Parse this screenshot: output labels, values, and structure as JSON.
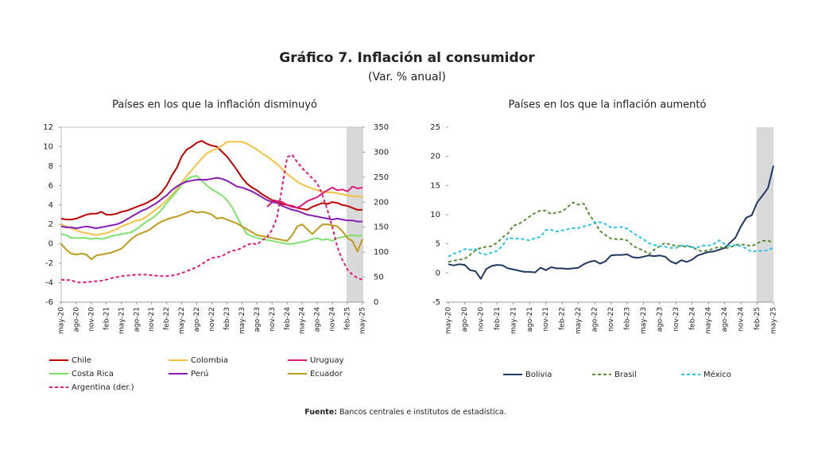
{
  "title": "Gráfico 7. Inflación al consumidor",
  "subtitle": "(Var. % anual)",
  "source_label": "Fuente:",
  "source_text": "Bancos centrales e institutos de estadística.",
  "chart_data": [
    {
      "type": "line",
      "title": "Países en los que la inflación disminuyó",
      "categories": [
        "may-20",
        null,
        null,
        "ago-20",
        null,
        null,
        "nov-20",
        null,
        null,
        "feb-21",
        null,
        null,
        "may-21",
        null,
        null,
        "ago-21",
        null,
        null,
        "nov-21",
        null,
        null,
        "feb-22",
        null,
        null,
        "may-22",
        null,
        null,
        "ago-22",
        null,
        null,
        "nov-22",
        null,
        null,
        "feb-23",
        null,
        null,
        "may-23",
        null,
        null,
        "ago-23",
        null,
        null,
        "nov-23",
        null,
        null,
        "feb-24",
        null,
        null,
        "may-24",
        null,
        null,
        "ago-24",
        null,
        null,
        "nov-24",
        null,
        null,
        "feb-25",
        null,
        null,
        "may-25"
      ],
      "ylim": [
        -6,
        12
      ],
      "yticks": [
        -6,
        -4,
        -2,
        0,
        2,
        4,
        6,
        8,
        10,
        12
      ],
      "y2lim": [
        0,
        350
      ],
      "y2ticks": [
        0,
        50,
        100,
        150,
        200,
        250,
        300,
        350
      ],
      "series": [
        {
          "name": "Chile",
          "color": "#c00000",
          "values": [
            2.6,
            2.5,
            2.5,
            2.6,
            2.8,
            3.0,
            3.1,
            3.1,
            3.3,
            3.0,
            3.0,
            3.1,
            3.3,
            3.4,
            3.6,
            3.8,
            4.0,
            4.2,
            4.5,
            4.8,
            5.3,
            6.0,
            7.0,
            7.8,
            9.0,
            9.7,
            10.0,
            10.4,
            10.6,
            10.3,
            10.1,
            10.0,
            9.5,
            9.0,
            8.3,
            7.6,
            6.8,
            6.2,
            5.8,
            5.5,
            5.1,
            4.8,
            4.5,
            4.4,
            4.1,
            4.0,
            3.9,
            3.7,
            3.6,
            3.5,
            3.8,
            4.0,
            4.2,
            4.1,
            4.3,
            4.2,
            4.0,
            3.9,
            3.7,
            3.5,
            3.5
          ]
        },
        {
          "name": "Colombia",
          "color": "#f5c242",
          "values": [
            2.0,
            1.8,
            1.6,
            1.4,
            1.2,
            1.1,
            1.0,
            0.9,
            1.0,
            1.1,
            1.3,
            1.5,
            1.8,
            2.0,
            2.2,
            2.4,
            2.5,
            2.8,
            3.2,
            3.6,
            4.0,
            4.5,
            5.0,
            5.6,
            6.3,
            7.0,
            7.6,
            8.2,
            8.8,
            9.3,
            9.6,
            9.8,
            10.1,
            10.5,
            10.5,
            10.5,
            10.5,
            10.3,
            10.0,
            9.7,
            9.3,
            9.0,
            8.6,
            8.2,
            7.7,
            7.2,
            6.8,
            6.4,
            6.1,
            5.9,
            5.7,
            5.5,
            5.4,
            5.3,
            5.3,
            5.2,
            5.1,
            5.0,
            4.9,
            4.9,
            4.8
          ]
        },
        {
          "name": "Uruguay",
          "color": "#e0197d",
          "values": [
            null,
            null,
            null,
            null,
            null,
            null,
            null,
            null,
            null,
            null,
            null,
            null,
            null,
            null,
            null,
            null,
            null,
            null,
            null,
            null,
            null,
            null,
            null,
            null,
            null,
            null,
            null,
            null,
            null,
            null,
            null,
            null,
            null,
            null,
            null,
            null,
            null,
            null,
            null,
            null,
            null,
            3.8,
            4.3,
            4.4,
            4.3,
            4.0,
            3.8,
            3.7,
            4.0,
            4.4,
            4.6,
            4.8,
            5.2,
            5.5,
            5.8,
            5.5,
            5.6,
            5.4,
            5.9,
            5.7,
            5.8
          ]
        },
        {
          "name": "Costa Rica",
          "color": "#7ce36b",
          "values": [
            1.0,
            0.9,
            0.6,
            0.6,
            0.6,
            0.6,
            0.5,
            0.6,
            0.5,
            0.6,
            0.8,
            0.9,
            1.0,
            1.1,
            1.2,
            1.5,
            1.9,
            2.3,
            2.6,
            3.0,
            3.5,
            4.2,
            4.8,
            5.4,
            6.1,
            6.6,
            6.9,
            7.0,
            6.5,
            6.0,
            5.6,
            5.3,
            5.0,
            4.5,
            3.8,
            2.8,
            1.8,
            1.0,
            0.8,
            0.6,
            0.5,
            0.4,
            0.3,
            0.2,
            0.1,
            0.0,
            0.0,
            0.1,
            0.2,
            0.3,
            0.5,
            0.6,
            0.4,
            0.5,
            0.3,
            0.6,
            0.7,
            0.8,
            0.9,
            0.8,
            0.9
          ]
        },
        {
          "name": "Perú",
          "color": "#8a1bb5",
          "values": [
            1.8,
            1.7,
            1.7,
            1.6,
            1.7,
            1.8,
            1.7,
            1.6,
            1.7,
            1.8,
            1.9,
            2.0,
            2.2,
            2.5,
            2.8,
            3.1,
            3.4,
            3.6,
            3.9,
            4.2,
            4.6,
            5.0,
            5.5,
            5.9,
            6.2,
            6.4,
            6.5,
            6.6,
            6.6,
            6.6,
            6.7,
            6.8,
            6.7,
            6.5,
            6.2,
            5.9,
            5.8,
            5.6,
            5.4,
            5.1,
            4.8,
            4.5,
            4.3,
            4.2,
            3.9,
            3.7,
            3.5,
            3.4,
            3.2,
            3.0,
            2.9,
            2.8,
            2.7,
            2.6,
            2.5,
            2.6,
            2.5,
            2.4,
            2.4,
            2.3,
            2.3
          ]
        },
        {
          "name": "Ecuador",
          "color": "#c09a1a",
          "values": [
            0.0,
            -0.6,
            -1.0,
            -1.1,
            -1.0,
            -1.1,
            -1.6,
            -1.2,
            -1.1,
            -1.0,
            -0.9,
            -0.7,
            -0.5,
            0.0,
            0.5,
            0.9,
            1.1,
            1.3,
            1.6,
            2.0,
            2.3,
            2.5,
            2.7,
            2.8,
            3.0,
            3.2,
            3.4,
            3.2,
            3.3,
            3.2,
            3.0,
            2.6,
            2.7,
            2.5,
            2.3,
            2.1,
            1.8,
            1.5,
            1.2,
            0.9,
            0.8,
            0.7,
            0.6,
            0.5,
            0.4,
            0.3,
            0.9,
            1.8,
            2.0,
            1.5,
            1.0,
            1.5,
            2.0,
            2.0,
            1.9,
            1.8,
            1.3,
            0.6,
            0.3,
            -0.8,
            0.5
          ]
        },
        {
          "name": "Argentina (der.)",
          "color": "#e0197d",
          "dashed": true,
          "axis": "y2",
          "values": [
            45,
            44,
            44,
            40,
            39,
            40,
            41,
            42,
            43,
            45,
            48,
            50,
            52,
            53,
            54,
            55,
            55,
            55,
            54,
            53,
            52,
            52,
            53,
            55,
            58,
            62,
            66,
            70,
            76,
            83,
            88,
            90,
            92,
            98,
            103,
            104,
            109,
            114,
            118,
            115,
            124,
            130,
            145,
            170,
            230,
            290,
            295,
            280,
            268,
            258,
            248,
            238,
            215,
            185,
            150,
            110,
            85,
            65,
            55,
            48,
            45
          ]
        }
      ]
    },
    {
      "type": "line",
      "title": "Países en los que la inflación aumentó",
      "categories": [
        "may-20",
        null,
        null,
        "ago-20",
        null,
        null,
        "nov-20",
        null,
        null,
        "feb-21",
        null,
        null,
        "may-21",
        null,
        null,
        "ago-21",
        null,
        null,
        "nov-21",
        null,
        null,
        "feb-22",
        null,
        null,
        "may-22",
        null,
        null,
        "ago-22",
        null,
        null,
        "nov-22",
        null,
        null,
        "feb-23",
        null,
        null,
        "may-23",
        null,
        null,
        "ago-23",
        null,
        null,
        "nov-23",
        null,
        null,
        "feb-24",
        null,
        null,
        "may-24",
        null,
        null,
        "ago-24",
        null,
        null,
        "nov-24",
        null,
        null,
        "feb-25",
        null,
        null,
        "may-25"
      ],
      "ylim": [
        -5,
        25
      ],
      "yticks": [
        -5,
        0,
        5,
        10,
        15,
        20,
        25
      ],
      "series": [
        {
          "name": "Bolivia",
          "color": "#1f3864",
          "values": [
            1.5,
            1.3,
            1.5,
            1.4,
            0.5,
            0.3,
            -1.0,
            0.7,
            1.2,
            1.4,
            1.3,
            0.8,
            0.6,
            0.4,
            0.2,
            0.2,
            0.1,
            0.9,
            0.5,
            1.0,
            0.8,
            0.8,
            0.7,
            0.8,
            0.9,
            1.5,
            1.9,
            2.1,
            1.6,
            2.0,
            3.0,
            3.1,
            3.1,
            3.2,
            2.7,
            2.6,
            2.8,
            3.0,
            2.9,
            3.0,
            2.8,
            2.0,
            1.6,
            2.2,
            1.9,
            2.3,
            3.0,
            3.3,
            3.6,
            3.7,
            4.0,
            4.3,
            5.2,
            6.1,
            8.0,
            9.5,
            9.9,
            12.1,
            13.3,
            14.6,
            18.4
          ]
        },
        {
          "name": "Brasil",
          "color": "#5a8f3a",
          "dashed": true,
          "values": [
            1.9,
            2.1,
            2.3,
            2.4,
            3.1,
            3.9,
            4.3,
            4.5,
            4.6,
            5.2,
            6.1,
            6.8,
            8.1,
            8.4,
            9.0,
            9.7,
            10.3,
            10.7,
            10.7,
            10.1,
            10.4,
            10.5,
            11.3,
            12.1,
            11.7,
            11.9,
            10.1,
            8.7,
            7.2,
            6.5,
            5.9,
            5.8,
            5.8,
            5.6,
            4.7,
            4.2,
            3.9,
            3.2,
            4.0,
            4.6,
            5.2,
            4.8,
            4.7,
            4.6,
            4.5,
            4.5,
            3.9,
            3.7,
            3.9,
            4.2,
            4.5,
            4.2,
            4.4,
            4.8,
            4.9,
            4.8,
            4.6,
            5.1,
            5.5,
            5.5,
            5.3
          ]
        },
        {
          "name": "México",
          "color": "#25c4e8",
          "dashed": true,
          "values": [
            2.8,
            3.3,
            3.6,
            4.1,
            4.0,
            4.1,
            3.3,
            3.2,
            3.5,
            3.8,
            4.7,
            6.1,
            5.9,
            5.9,
            5.8,
            5.6,
            6.0,
            6.2,
            7.4,
            7.4,
            7.1,
            7.3,
            7.5,
            7.7,
            7.7,
            8.0,
            8.2,
            8.7,
            8.7,
            8.4,
            7.8,
            7.8,
            7.9,
            7.6,
            6.9,
            6.3,
            5.8,
            5.1,
            4.8,
            4.6,
            4.5,
            4.3,
            4.3,
            4.7,
            4.7,
            4.4,
            4.4,
            4.7,
            4.7,
            5.0,
            5.6,
            5.0,
            4.6,
            4.8,
            4.6,
            4.2,
            3.6,
            3.8,
            3.8,
            3.9,
            4.4
          ]
        }
      ]
    }
  ]
}
